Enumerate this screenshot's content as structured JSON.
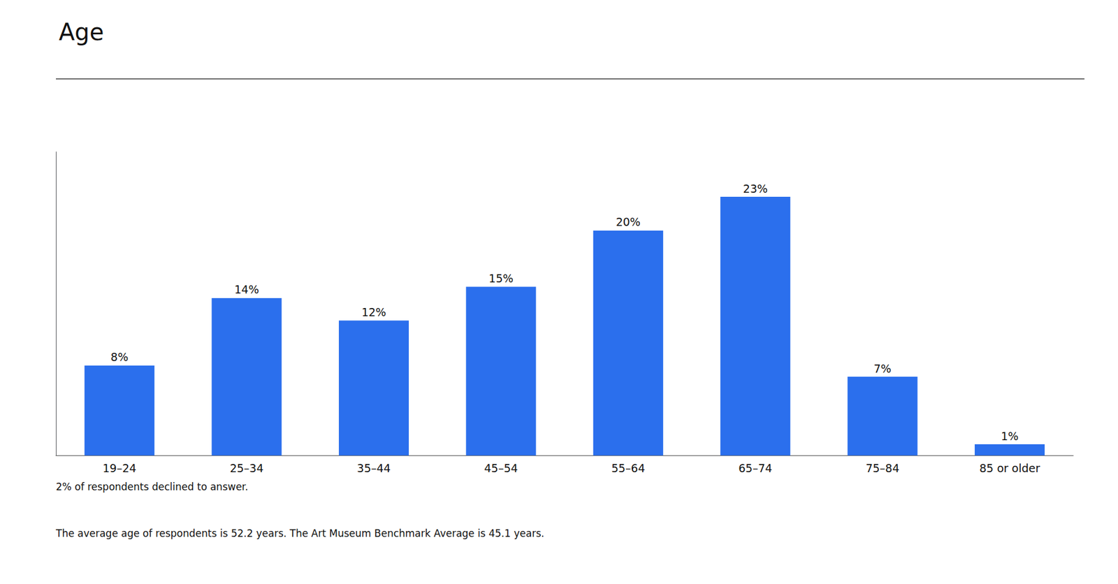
{
  "chart_data": {
    "type": "bar",
    "title": "Age",
    "categories": [
      "19–24",
      "25–34",
      "35–44",
      "45–54",
      "55–64",
      "65–74",
      "75–84",
      "85 or older"
    ],
    "values": [
      8,
      14,
      12,
      15,
      20,
      23,
      7,
      1
    ],
    "value_labels": [
      "8%",
      "14%",
      "12%",
      "15%",
      "20%",
      "23%",
      "7%",
      "1%"
    ],
    "data_labels": true,
    "color": "#2B6FED",
    "ylim": [
      0,
      27
    ],
    "grid": false,
    "tick_labels": "x",
    "annotations": [
      "2% of respondents declined to answer.",
      "The average age of respondents is 52.2 years. The Art Museum Benchmark Average is 45.1 years."
    ]
  }
}
